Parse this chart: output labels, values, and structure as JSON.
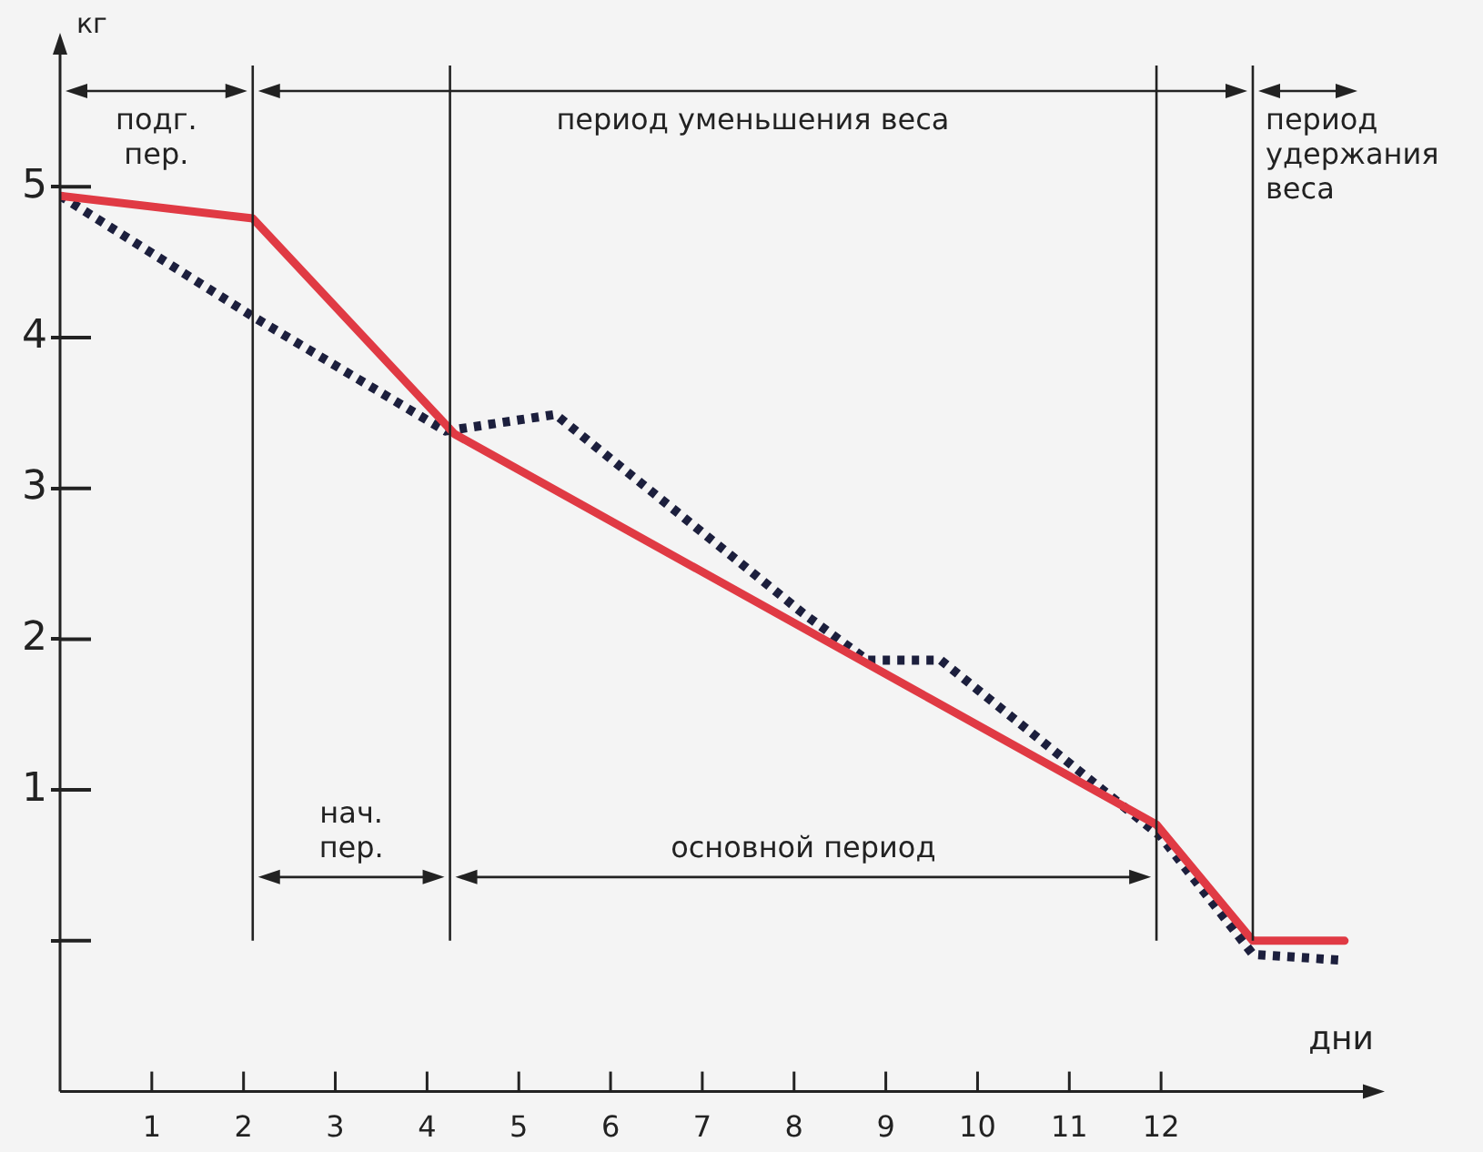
{
  "chart_data": {
    "type": "line",
    "xlabel": "дни",
    "ylabel": "кг",
    "xlim": [
      0,
      14.2
    ],
    "ylim": [
      -1,
      5.9
    ],
    "xticks": [
      1,
      2,
      3,
      4,
      5,
      6,
      7,
      8,
      9,
      10,
      11,
      12
    ],
    "yticks": [
      {
        "value": 0,
        "label": null
      },
      1,
      2,
      3,
      4,
      5
    ],
    "series": [
      {
        "color": "#e03a44",
        "line_style": "solid",
        "x": [
          0,
          2.1,
          4.3,
          11.95,
          13,
          14
        ],
        "values": [
          4.94,
          4.79,
          3.36,
          0.77,
          0,
          0
        ]
      },
      {
        "color": "#1c1f3d",
        "line_style": "dotted",
        "x": [
          0,
          2.1,
          4.2,
          5.4,
          8.1,
          8.8,
          9.6,
          12,
          13,
          14
        ],
        "values": [
          4.94,
          4.14,
          3.38,
          3.49,
          2.17,
          1.86,
          1.86,
          0.69,
          -0.09,
          -0.13
        ]
      }
    ],
    "ref_lines": [
      {
        "axis": "x",
        "value": 2.1
      },
      {
        "axis": "x",
        "value": 4.25
      },
      {
        "axis": "x",
        "value": 11.95
      },
      {
        "axis": "x",
        "value": 13
      }
    ],
    "annotations": [
      "подг.\nпер.",
      "период уменьшения веса",
      "период\nудержания\nвеса",
      "нач.\nпер.",
      "основной период"
    ],
    "legend": false,
    "marker": "none"
  }
}
